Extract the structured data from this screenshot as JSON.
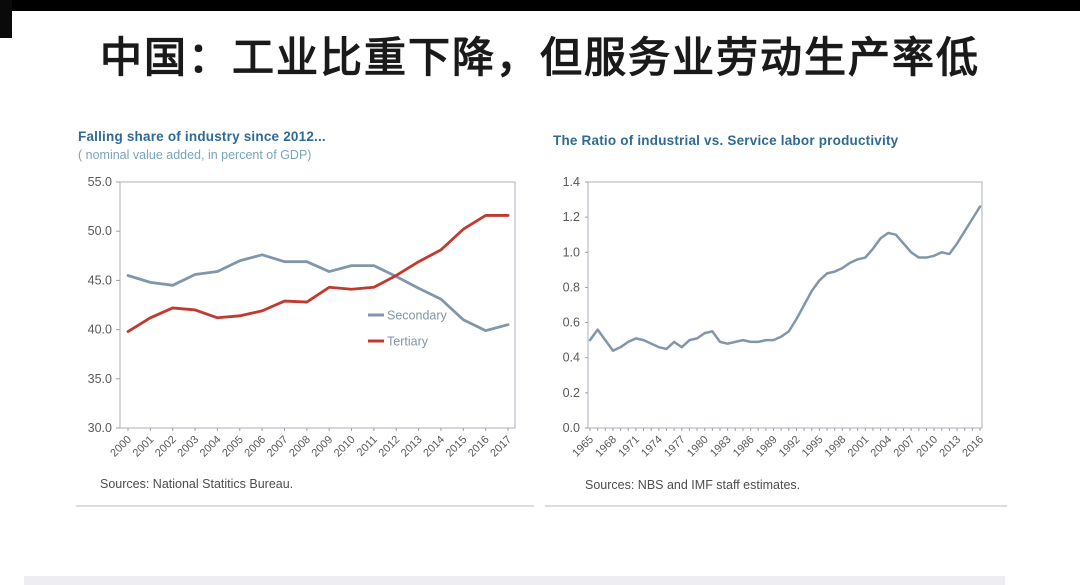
{
  "page": {
    "title": "中国：工业比重下降，但服务业劳动生产率低"
  },
  "colors": {
    "top_bar": "#000000",
    "background": "#ffffff",
    "slide_title_text": "#1a1a1a",
    "chart_title_text": "#2e6a94",
    "chart_subtitle_text": "#79a4bc",
    "axis_text": "#595959",
    "tick": "#9ba0a8",
    "frame": "#b9bdc5",
    "secondary_line": "#8097ab",
    "tertiary_line": "#c13a30",
    "ratio_line": "#8097ab",
    "legend_text": "#8494a4",
    "source_text": "#4d4d4d"
  },
  "chart_data": [
    {
      "type": "line",
      "title": "Falling share of industry since 2012...",
      "subtitle": "( nominal value added, in percent of GDP)",
      "source": "Sources: National Statitics Bureau.",
      "categories": [
        "2000",
        "2001",
        "2002",
        "2003",
        "2004",
        "2005",
        "2006",
        "2007",
        "2008",
        "2009",
        "2010",
        "2011",
        "2012",
        "2013",
        "2014",
        "2015",
        "2016",
        "2017"
      ],
      "series": [
        {
          "name": "Secondary",
          "color_key": "secondary_line",
          "values": [
            45.5,
            44.8,
            44.5,
            45.6,
            45.9,
            47.0,
            47.6,
            46.9,
            46.9,
            45.9,
            46.5,
            46.5,
            45.4,
            44.2,
            43.1,
            41.0,
            39.9,
            40.5
          ]
        },
        {
          "name": "Tertiary",
          "color_key": "tertiary_line",
          "values": [
            39.8,
            41.2,
            42.2,
            42.0,
            41.2,
            41.4,
            41.9,
            42.9,
            42.8,
            44.3,
            44.1,
            44.3,
            45.5,
            46.9,
            48.1,
            50.2,
            51.6,
            51.6
          ]
        }
      ],
      "ylim": [
        30,
        55
      ],
      "yticks": [
        55,
        50,
        45,
        40,
        35,
        30
      ],
      "ytick_labels": [
        "55.0",
        "50.0",
        "45.0",
        "40.0",
        "35.0",
        "30.0"
      ],
      "x_label_every": 1,
      "grid": false,
      "legend_position": "inside-right"
    },
    {
      "type": "line",
      "title": "The Ratio of industrial vs. Service labor productivity",
      "subtitle": "",
      "source": "Sources: NBS and IMF staff estimates.",
      "categories": [
        "1965",
        "1966",
        "1967",
        "1968",
        "1969",
        "1970",
        "1971",
        "1972",
        "1973",
        "1974",
        "1975",
        "1976",
        "1977",
        "1978",
        "1979",
        "1980",
        "1981",
        "1982",
        "1983",
        "1984",
        "1985",
        "1986",
        "1987",
        "1988",
        "1989",
        "1990",
        "1991",
        "1992",
        "1993",
        "1994",
        "1995",
        "1996",
        "1997",
        "1998",
        "1999",
        "2000",
        "2001",
        "2002",
        "2003",
        "2004",
        "2005",
        "2006",
        "2007",
        "2008",
        "2009",
        "2010",
        "2011",
        "2012",
        "2013",
        "2014",
        "2015",
        "2016"
      ],
      "series": [
        {
          "name": "Ratio of industrial vs. service labor productivity",
          "color_key": "ratio_line",
          "values": [
            0.5,
            0.56,
            0.5,
            0.44,
            0.46,
            0.49,
            0.51,
            0.5,
            0.48,
            0.46,
            0.45,
            0.49,
            0.46,
            0.5,
            0.51,
            0.54,
            0.55,
            0.49,
            0.48,
            0.49,
            0.5,
            0.49,
            0.49,
            0.5,
            0.5,
            0.52,
            0.55,
            0.62,
            0.7,
            0.78,
            0.84,
            0.88,
            0.89,
            0.91,
            0.94,
            0.96,
            0.97,
            1.02,
            1.08,
            1.11,
            1.1,
            1.05,
            1.0,
            0.97,
            0.97,
            0.98,
            1.0,
            0.99,
            1.05,
            1.12,
            1.19,
            1.26
          ]
        }
      ],
      "ylim": [
        0,
        1.4
      ],
      "yticks": [
        1.4,
        1.2,
        1.0,
        0.8,
        0.6,
        0.4,
        0.2,
        0.0
      ],
      "ytick_labels": [
        "1.4",
        "1.2",
        "1.0",
        "0.8",
        "0.6",
        "0.4",
        "0.2",
        "0.0"
      ],
      "x_label_every": 3,
      "grid": false,
      "legend_position": "none"
    }
  ]
}
